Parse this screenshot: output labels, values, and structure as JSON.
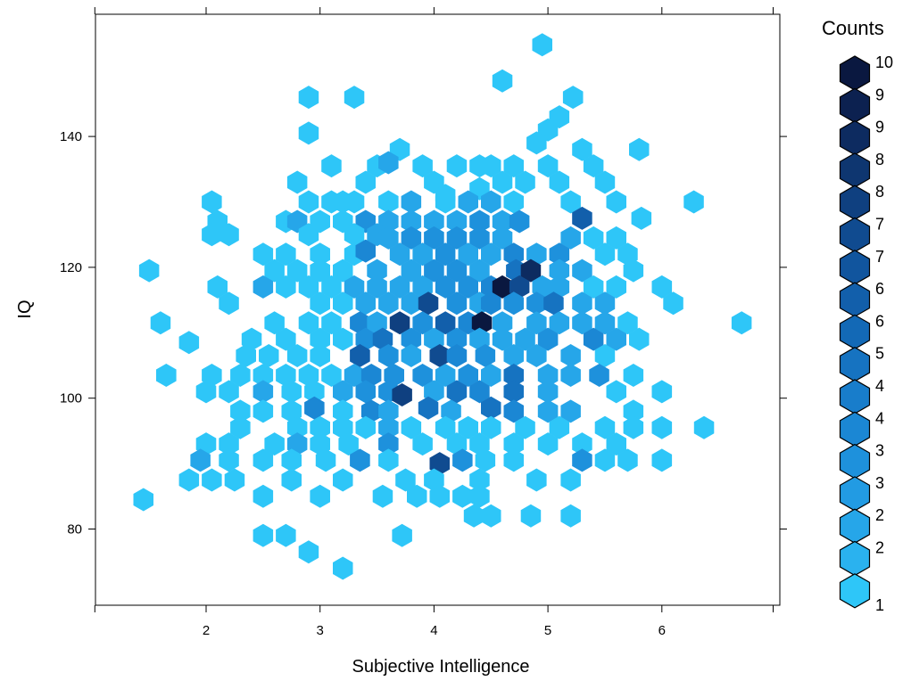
{
  "chart_data": {
    "type": "hexbin",
    "title": "",
    "xlabel": "Subjective Intelligence",
    "ylabel": "IQ",
    "xlim": [
      1.0,
      7.0
    ],
    "ylim": [
      68,
      160
    ],
    "x_ticks": [
      "2",
      "3",
      "4",
      "5",
      "6"
    ],
    "y_ticks": [
      "80",
      "100",
      "120",
      "140"
    ],
    "legend": {
      "title": "Counts",
      "labels": [
        "10",
        "9",
        "9",
        "8",
        "8",
        "7",
        "7",
        "6",
        "6",
        "5",
        "4",
        "4",
        "3",
        "3",
        "2",
        "2",
        "1"
      ],
      "colors": [
        "#0a1840",
        "#0c2150",
        "#0d2b60",
        "#0e3670",
        "#0f4080",
        "#104b90",
        "#11559e",
        "#125fab",
        "#1369b6",
        "#1673c1",
        "#187dcb",
        "#1b87d4",
        "#1e91dc",
        "#229be3",
        "#26a6e9",
        "#2ab2ef",
        "#2ec6f8"
      ]
    },
    "points": [
      [
        4.95,
        154,
        1
      ],
      [
        4.6,
        148.5,
        1
      ],
      [
        2.9,
        146,
        1
      ],
      [
        3.3,
        146,
        1
      ],
      [
        5.22,
        146,
        1
      ],
      [
        2.9,
        140.5,
        1
      ],
      [
        5.0,
        141,
        1
      ],
      [
        5.1,
        143,
        1
      ],
      [
        3.7,
        138,
        1
      ],
      [
        4.9,
        139,
        1
      ],
      [
        5.3,
        138,
        1
      ],
      [
        5.8,
        138,
        1
      ],
      [
        3.1,
        135.5,
        1
      ],
      [
        3.5,
        135.5,
        1
      ],
      [
        3.6,
        136,
        2
      ],
      [
        3.9,
        135.5,
        1
      ],
      [
        4.2,
        135.5,
        1
      ],
      [
        4.4,
        135.5,
        1
      ],
      [
        4.5,
        135.5,
        1
      ],
      [
        4.7,
        135.5,
        1
      ],
      [
        5.0,
        135.5,
        1
      ],
      [
        5.4,
        135.5,
        1
      ],
      [
        2.8,
        133,
        1
      ],
      [
        3.4,
        133,
        1
      ],
      [
        4.0,
        133,
        1
      ],
      [
        4.1,
        131,
        1
      ],
      [
        4.4,
        132,
        1
      ],
      [
        4.6,
        133,
        1
      ],
      [
        4.8,
        133,
        1
      ],
      [
        5.1,
        133,
        1
      ],
      [
        5.5,
        133,
        1
      ],
      [
        2.05,
        130,
        1
      ],
      [
        2.9,
        130,
        1
      ],
      [
        3.1,
        130,
        1
      ],
      [
        3.2,
        130,
        1
      ],
      [
        3.3,
        130,
        1
      ],
      [
        3.6,
        130,
        1
      ],
      [
        3.8,
        130,
        2
      ],
      [
        4.1,
        130,
        1
      ],
      [
        4.3,
        130,
        2
      ],
      [
        4.5,
        130,
        2
      ],
      [
        4.7,
        130,
        1
      ],
      [
        5.2,
        130,
        1
      ],
      [
        5.6,
        130,
        1
      ],
      [
        6.28,
        130,
        1
      ],
      [
        2.1,
        127,
        1
      ],
      [
        2.7,
        127,
        1
      ],
      [
        2.8,
        127,
        2
      ],
      [
        3.0,
        127,
        1
      ],
      [
        3.2,
        127,
        1
      ],
      [
        3.4,
        127,
        3
      ],
      [
        3.6,
        127,
        2
      ],
      [
        3.8,
        127,
        2
      ],
      [
        4.0,
        127,
        2
      ],
      [
        4.2,
        127,
        2
      ],
      [
        4.4,
        127,
        3
      ],
      [
        4.6,
        127,
        2
      ],
      [
        4.75,
        127,
        3
      ],
      [
        5.3,
        127.5,
        6
      ],
      [
        5.82,
        127.5,
        1
      ],
      [
        2.05,
        125,
        1
      ],
      [
        2.2,
        125,
        1
      ],
      [
        2.9,
        125,
        1
      ],
      [
        3.3,
        125,
        1
      ],
      [
        3.5,
        125,
        2
      ],
      [
        3.6,
        124.5,
        2
      ],
      [
        3.8,
        124.5,
        3
      ],
      [
        4.0,
        124.5,
        3
      ],
      [
        4.2,
        124.5,
        3
      ],
      [
        4.4,
        124.5,
        3
      ],
      [
        4.6,
        124.5,
        2
      ],
      [
        5.2,
        124.5,
        2
      ],
      [
        5.4,
        124.5,
        1
      ],
      [
        5.6,
        124.5,
        1
      ],
      [
        2.5,
        122,
        1
      ],
      [
        2.7,
        122,
        1
      ],
      [
        3.0,
        122,
        1
      ],
      [
        3.3,
        122,
        1
      ],
      [
        3.4,
        122.5,
        4
      ],
      [
        3.7,
        122,
        2
      ],
      [
        3.9,
        122,
        2
      ],
      [
        4.1,
        122,
        3
      ],
      [
        4.3,
        122,
        2
      ],
      [
        4.5,
        122,
        2
      ],
      [
        4.7,
        122,
        4
      ],
      [
        4.9,
        122,
        2
      ],
      [
        5.1,
        122,
        3
      ],
      [
        5.5,
        122,
        1
      ],
      [
        5.7,
        122,
        1
      ],
      [
        1.5,
        119.5,
        1
      ],
      [
        2.6,
        119.5,
        1
      ],
      [
        2.8,
        119.5,
        1
      ],
      [
        3.0,
        119.5,
        1
      ],
      [
        3.2,
        119.5,
        1
      ],
      [
        3.5,
        119.5,
        2
      ],
      [
        3.8,
        119.5,
        2
      ],
      [
        4.0,
        119.5,
        3
      ],
      [
        4.2,
        119.5,
        3
      ],
      [
        4.4,
        119.5,
        2
      ],
      [
        4.72,
        119.5,
        5
      ],
      [
        4.85,
        119.5,
        9
      ],
      [
        5.1,
        119.5,
        2
      ],
      [
        5.3,
        119.5,
        2
      ],
      [
        5.75,
        119.5,
        1
      ],
      [
        2.1,
        117,
        1
      ],
      [
        2.5,
        117,
        2
      ],
      [
        2.7,
        117,
        1
      ],
      [
        2.9,
        117,
        1
      ],
      [
        3.1,
        117,
        1
      ],
      [
        3.3,
        117,
        2
      ],
      [
        3.5,
        117,
        2
      ],
      [
        3.7,
        117,
        2
      ],
      [
        3.9,
        117,
        2
      ],
      [
        4.1,
        117,
        3
      ],
      [
        4.3,
        117,
        3
      ],
      [
        4.5,
        117,
        4
      ],
      [
        4.6,
        117,
        10
      ],
      [
        4.75,
        117,
        7
      ],
      [
        4.95,
        117,
        2
      ],
      [
        5.1,
        117,
        2
      ],
      [
        5.4,
        117,
        1
      ],
      [
        5.6,
        117,
        1
      ],
      [
        6.0,
        117,
        1
      ],
      [
        2.2,
        114.5,
        1
      ],
      [
        3.0,
        114.5,
        1
      ],
      [
        3.2,
        114.5,
        1
      ],
      [
        3.4,
        114.5,
        2
      ],
      [
        3.6,
        114.5,
        2
      ],
      [
        3.8,
        114.5,
        2
      ],
      [
        3.95,
        114.5,
        7
      ],
      [
        4.2,
        114.5,
        3
      ],
      [
        4.4,
        114.5,
        2
      ],
      [
        4.5,
        114.5,
        4
      ],
      [
        4.7,
        114.5,
        3
      ],
      [
        4.9,
        114.5,
        3
      ],
      [
        5.05,
        114.5,
        5
      ],
      [
        5.3,
        114.5,
        2
      ],
      [
        5.5,
        114.5,
        2
      ],
      [
        6.1,
        114.5,
        1
      ],
      [
        1.6,
        111.5,
        1
      ],
      [
        2.6,
        111.5,
        1
      ],
      [
        2.9,
        111.5,
        1
      ],
      [
        3.1,
        111.5,
        1
      ],
      [
        3.35,
        111.5,
        4
      ],
      [
        3.5,
        111.5,
        2
      ],
      [
        3.7,
        111.5,
        8
      ],
      [
        3.9,
        111.5,
        3
      ],
      [
        4.1,
        111.5,
        6
      ],
      [
        4.3,
        111.5,
        4
      ],
      [
        4.42,
        111.5,
        10
      ],
      [
        4.6,
        111.5,
        2
      ],
      [
        4.9,
        111.5,
        2
      ],
      [
        5.1,
        111.5,
        2
      ],
      [
        5.3,
        111.5,
        2
      ],
      [
        5.5,
        111.5,
        2
      ],
      [
        5.7,
        111.5,
        1
      ],
      [
        6.7,
        111.5,
        1
      ],
      [
        2.4,
        109,
        1
      ],
      [
        2.7,
        109,
        1
      ],
      [
        3.0,
        109,
        1
      ],
      [
        3.2,
        109,
        1
      ],
      [
        3.4,
        109,
        3
      ],
      [
        3.55,
        109,
        5
      ],
      [
        3.8,
        109,
        3
      ],
      [
        4.0,
        109,
        2
      ],
      [
        4.2,
        109,
        3
      ],
      [
        4.4,
        109,
        2
      ],
      [
        4.6,
        109,
        2
      ],
      [
        4.8,
        109,
        2
      ],
      [
        5.0,
        109,
        3
      ],
      [
        5.4,
        109,
        4
      ],
      [
        5.6,
        109,
        2
      ],
      [
        5.8,
        109,
        1
      ],
      [
        1.85,
        108.5,
        1
      ],
      [
        2.35,
        106.5,
        1
      ],
      [
        2.55,
        106.5,
        1
      ],
      [
        2.8,
        106.5,
        1
      ],
      [
        3.0,
        106.5,
        1
      ],
      [
        3.35,
        106.5,
        6
      ],
      [
        3.6,
        106.5,
        3
      ],
      [
        3.8,
        106.5,
        2
      ],
      [
        4.05,
        106.5,
        7
      ],
      [
        4.2,
        106.5,
        4
      ],
      [
        4.45,
        106.5,
        3
      ],
      [
        4.7,
        106.5,
        2
      ],
      [
        4.9,
        106.5,
        2
      ],
      [
        5.2,
        106.5,
        2
      ],
      [
        5.5,
        106.5,
        1
      ],
      [
        1.65,
        103.5,
        1
      ],
      [
        2.05,
        103.5,
        1
      ],
      [
        2.3,
        103.5,
        1
      ],
      [
        2.5,
        103.5,
        1
      ],
      [
        2.7,
        103.5,
        1
      ],
      [
        2.9,
        103.5,
        1
      ],
      [
        3.1,
        103.5,
        1
      ],
      [
        3.3,
        103.5,
        2
      ],
      [
        3.45,
        103.5,
        4
      ],
      [
        3.65,
        103.5,
        3
      ],
      [
        3.9,
        103.5,
        3
      ],
      [
        4.1,
        103.5,
        2
      ],
      [
        4.3,
        103.5,
        3
      ],
      [
        4.5,
        103.5,
        2
      ],
      [
        4.7,
        103.5,
        5
      ],
      [
        5.0,
        103.5,
        2
      ],
      [
        5.2,
        103.5,
        2
      ],
      [
        5.45,
        103.5,
        3
      ],
      [
        5.75,
        103.5,
        1
      ],
      [
        2.0,
        101,
        1
      ],
      [
        2.2,
        101,
        1
      ],
      [
        2.5,
        101,
        2
      ],
      [
        2.75,
        101,
        1
      ],
      [
        2.95,
        101,
        1
      ],
      [
        3.2,
        101,
        2
      ],
      [
        3.4,
        101,
        3
      ],
      [
        3.6,
        101,
        3
      ],
      [
        3.72,
        100.5,
        8
      ],
      [
        4.0,
        101,
        2
      ],
      [
        4.2,
        101,
        5
      ],
      [
        4.4,
        101,
        4
      ],
      [
        4.7,
        101,
        5
      ],
      [
        5.0,
        101,
        2
      ],
      [
        5.6,
        101,
        1
      ],
      [
        6.0,
        101,
        1
      ],
      [
        2.3,
        98,
        1
      ],
      [
        2.5,
        98,
        1
      ],
      [
        2.75,
        98,
        1
      ],
      [
        2.95,
        98.5,
        4
      ],
      [
        3.2,
        98,
        1
      ],
      [
        3.45,
        98,
        4
      ],
      [
        3.6,
        98,
        2
      ],
      [
        3.95,
        98.5,
        5
      ],
      [
        4.15,
        98,
        2
      ],
      [
        4.5,
        98.5,
        5
      ],
      [
        4.7,
        98,
        4
      ],
      [
        5.0,
        98,
        2
      ],
      [
        5.2,
        98,
        2
      ],
      [
        5.75,
        98,
        1
      ],
      [
        2.3,
        95.5,
        1
      ],
      [
        2.8,
        95.5,
        1
      ],
      [
        3.0,
        95.5,
        1
      ],
      [
        3.2,
        95.5,
        1
      ],
      [
        3.4,
        95.5,
        1
      ],
      [
        3.6,
        95.5,
        2
      ],
      [
        3.8,
        95.5,
        1
      ],
      [
        4.1,
        95.5,
        1
      ],
      [
        4.3,
        95.5,
        1
      ],
      [
        4.5,
        95.5,
        1
      ],
      [
        4.8,
        95.5,
        1
      ],
      [
        5.1,
        95.5,
        1
      ],
      [
        5.5,
        95.5,
        1
      ],
      [
        5.75,
        95.5,
        1
      ],
      [
        6.0,
        95.5,
        1
      ],
      [
        6.37,
        95.5,
        1
      ],
      [
        2.0,
        93,
        1
      ],
      [
        2.2,
        93,
        1
      ],
      [
        2.6,
        93,
        1
      ],
      [
        2.8,
        93,
        2
      ],
      [
        3.0,
        93,
        1
      ],
      [
        3.25,
        93,
        1
      ],
      [
        3.6,
        93,
        3
      ],
      [
        3.9,
        93,
        1
      ],
      [
        4.2,
        93,
        1
      ],
      [
        4.4,
        93,
        1
      ],
      [
        4.7,
        93,
        1
      ],
      [
        5.0,
        93,
        1
      ],
      [
        5.3,
        93,
        1
      ],
      [
        5.6,
        93,
        1
      ],
      [
        1.95,
        90.5,
        2
      ],
      [
        2.2,
        90.5,
        1
      ],
      [
        2.5,
        90.5,
        1
      ],
      [
        2.75,
        90.5,
        1
      ],
      [
        3.05,
        90.5,
        1
      ],
      [
        3.35,
        90.5,
        3
      ],
      [
        3.6,
        90.5,
        1
      ],
      [
        4.05,
        90,
        7
      ],
      [
        4.25,
        90.5,
        3
      ],
      [
        4.45,
        90.5,
        1
      ],
      [
        4.7,
        90.5,
        1
      ],
      [
        5.3,
        90.5,
        3
      ],
      [
        5.5,
        90.5,
        1
      ],
      [
        5.7,
        90.5,
        1
      ],
      [
        6.0,
        90.5,
        1
      ],
      [
        1.85,
        87.5,
        1
      ],
      [
        2.05,
        87.5,
        1
      ],
      [
        2.25,
        87.5,
        1
      ],
      [
        2.75,
        87.5,
        1
      ],
      [
        3.2,
        87.5,
        1
      ],
      [
        3.75,
        87.5,
        1
      ],
      [
        4.0,
        87.5,
        1
      ],
      [
        4.4,
        87.5,
        1
      ],
      [
        4.9,
        87.5,
        1
      ],
      [
        5.2,
        87.5,
        1
      ],
      [
        1.45,
        84.5,
        1
      ],
      [
        2.5,
        85,
        1
      ],
      [
        3.0,
        85,
        1
      ],
      [
        3.55,
        85,
        1
      ],
      [
        3.85,
        85,
        1
      ],
      [
        4.05,
        85,
        1
      ],
      [
        4.25,
        85,
        1
      ],
      [
        4.4,
        85,
        1
      ],
      [
        4.35,
        82,
        1
      ],
      [
        4.5,
        82,
        1
      ],
      [
        4.85,
        82,
        1
      ],
      [
        5.2,
        82,
        1
      ],
      [
        2.5,
        79,
        1
      ],
      [
        2.7,
        79,
        1
      ],
      [
        3.72,
        79,
        1
      ],
      [
        2.9,
        76.5,
        1
      ],
      [
        3.2,
        74,
        1
      ]
    ]
  }
}
